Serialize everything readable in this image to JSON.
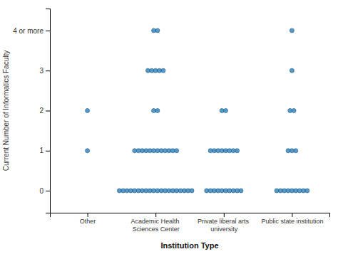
{
  "chart_data": {
    "type": "dot",
    "categories": [
      "Other",
      "Academic Health\nSciences Center",
      "Private liberal arts\nuniversity",
      "Public state institution"
    ],
    "y": [
      0,
      1,
      2,
      3,
      4
    ],
    "counts": [
      [
        0,
        20,
        10,
        9
      ],
      [
        1,
        12,
        8,
        3
      ],
      [
        1,
        2,
        2,
        2
      ],
      [
        0,
        5,
        0,
        1
      ],
      [
        0,
        2,
        0,
        1
      ]
    ],
    "ylim": [
      -0.55,
      4.55
    ],
    "yticks": [
      0,
      1,
      2,
      3,
      {
        "value": 4,
        "label": "4 or more"
      }
    ],
    "ylabel": "Current Number of Informatics Faculty",
    "xlabel": "Institution Type",
    "grid": false
  }
}
